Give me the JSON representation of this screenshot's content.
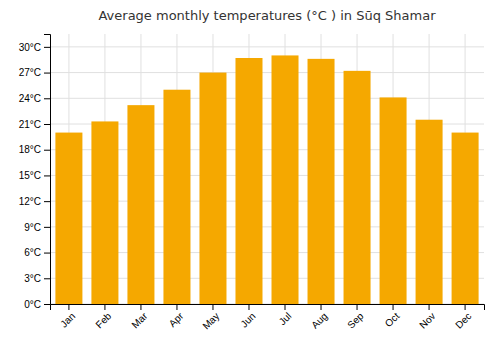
{
  "chart_data": {
    "type": "bar",
    "title": "Average monthly temperatures (°C ) in Sūq Shamar",
    "categories": [
      "Jan",
      "Feb",
      "Mar",
      "Apr",
      "May",
      "Jun",
      "Jul",
      "Aug",
      "Sep",
      "Oct",
      "Nov",
      "Dec"
    ],
    "values": [
      20.0,
      21.3,
      23.2,
      25.0,
      27.0,
      28.7,
      29.0,
      28.6,
      27.2,
      24.1,
      21.5,
      20.0
    ],
    "color": "#F5A800",
    "ylim": [
      0,
      31.5
    ],
    "yticks": [
      {
        "value": 0,
        "label": "0°C"
      },
      {
        "value": 3,
        "label": "3°C"
      },
      {
        "value": 6,
        "label": "6°C"
      },
      {
        "value": 9,
        "label": "9°C"
      },
      {
        "value": 12,
        "label": "12°C"
      },
      {
        "value": 15,
        "label": "15°C"
      },
      {
        "value": 18,
        "label": "18°C"
      },
      {
        "value": 21,
        "label": "21°C"
      },
      {
        "value": 24,
        "label": "24°C"
      },
      {
        "value": 27,
        "label": "27°C"
      },
      {
        "value": 30,
        "label": "30°C"
      }
    ],
    "grid": true
  }
}
